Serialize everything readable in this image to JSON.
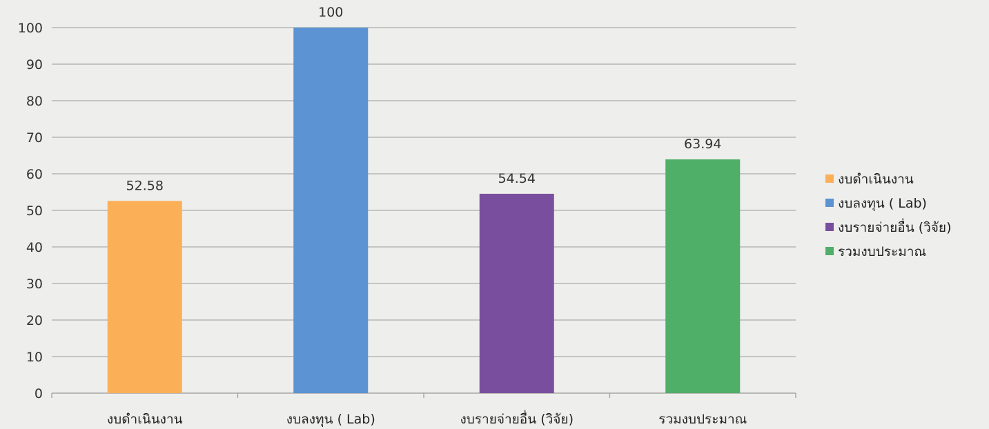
{
  "chart_data": {
    "type": "bar",
    "categories": [
      "งบดำเนินงาน",
      "งบลงทุน ( Lab)",
      "งบรายจ่ายอื่น (วิจัย)",
      "รวมงบประมาณ"
    ],
    "values": [
      52.58,
      100,
      54.54,
      63.94
    ],
    "data_labels": [
      "52.58",
      "100",
      "54.54",
      "63.94"
    ],
    "colors": [
      "#fbaf57",
      "#5b93d3",
      "#7a4e9f",
      "#4fae68"
    ],
    "ylim": [
      0,
      100
    ],
    "yticks": [
      0,
      10,
      20,
      30,
      40,
      50,
      60,
      70,
      80,
      90,
      100
    ],
    "grid": true,
    "legend": {
      "position": "right",
      "entries": [
        "งบดำเนินงาน",
        "งบลงทุน ( Lab)",
        "งบรายจ่ายอื่น (วิจัย)",
        "รวมงบประมาณ"
      ]
    },
    "title": "",
    "xlabel": "",
    "ylabel": ""
  }
}
